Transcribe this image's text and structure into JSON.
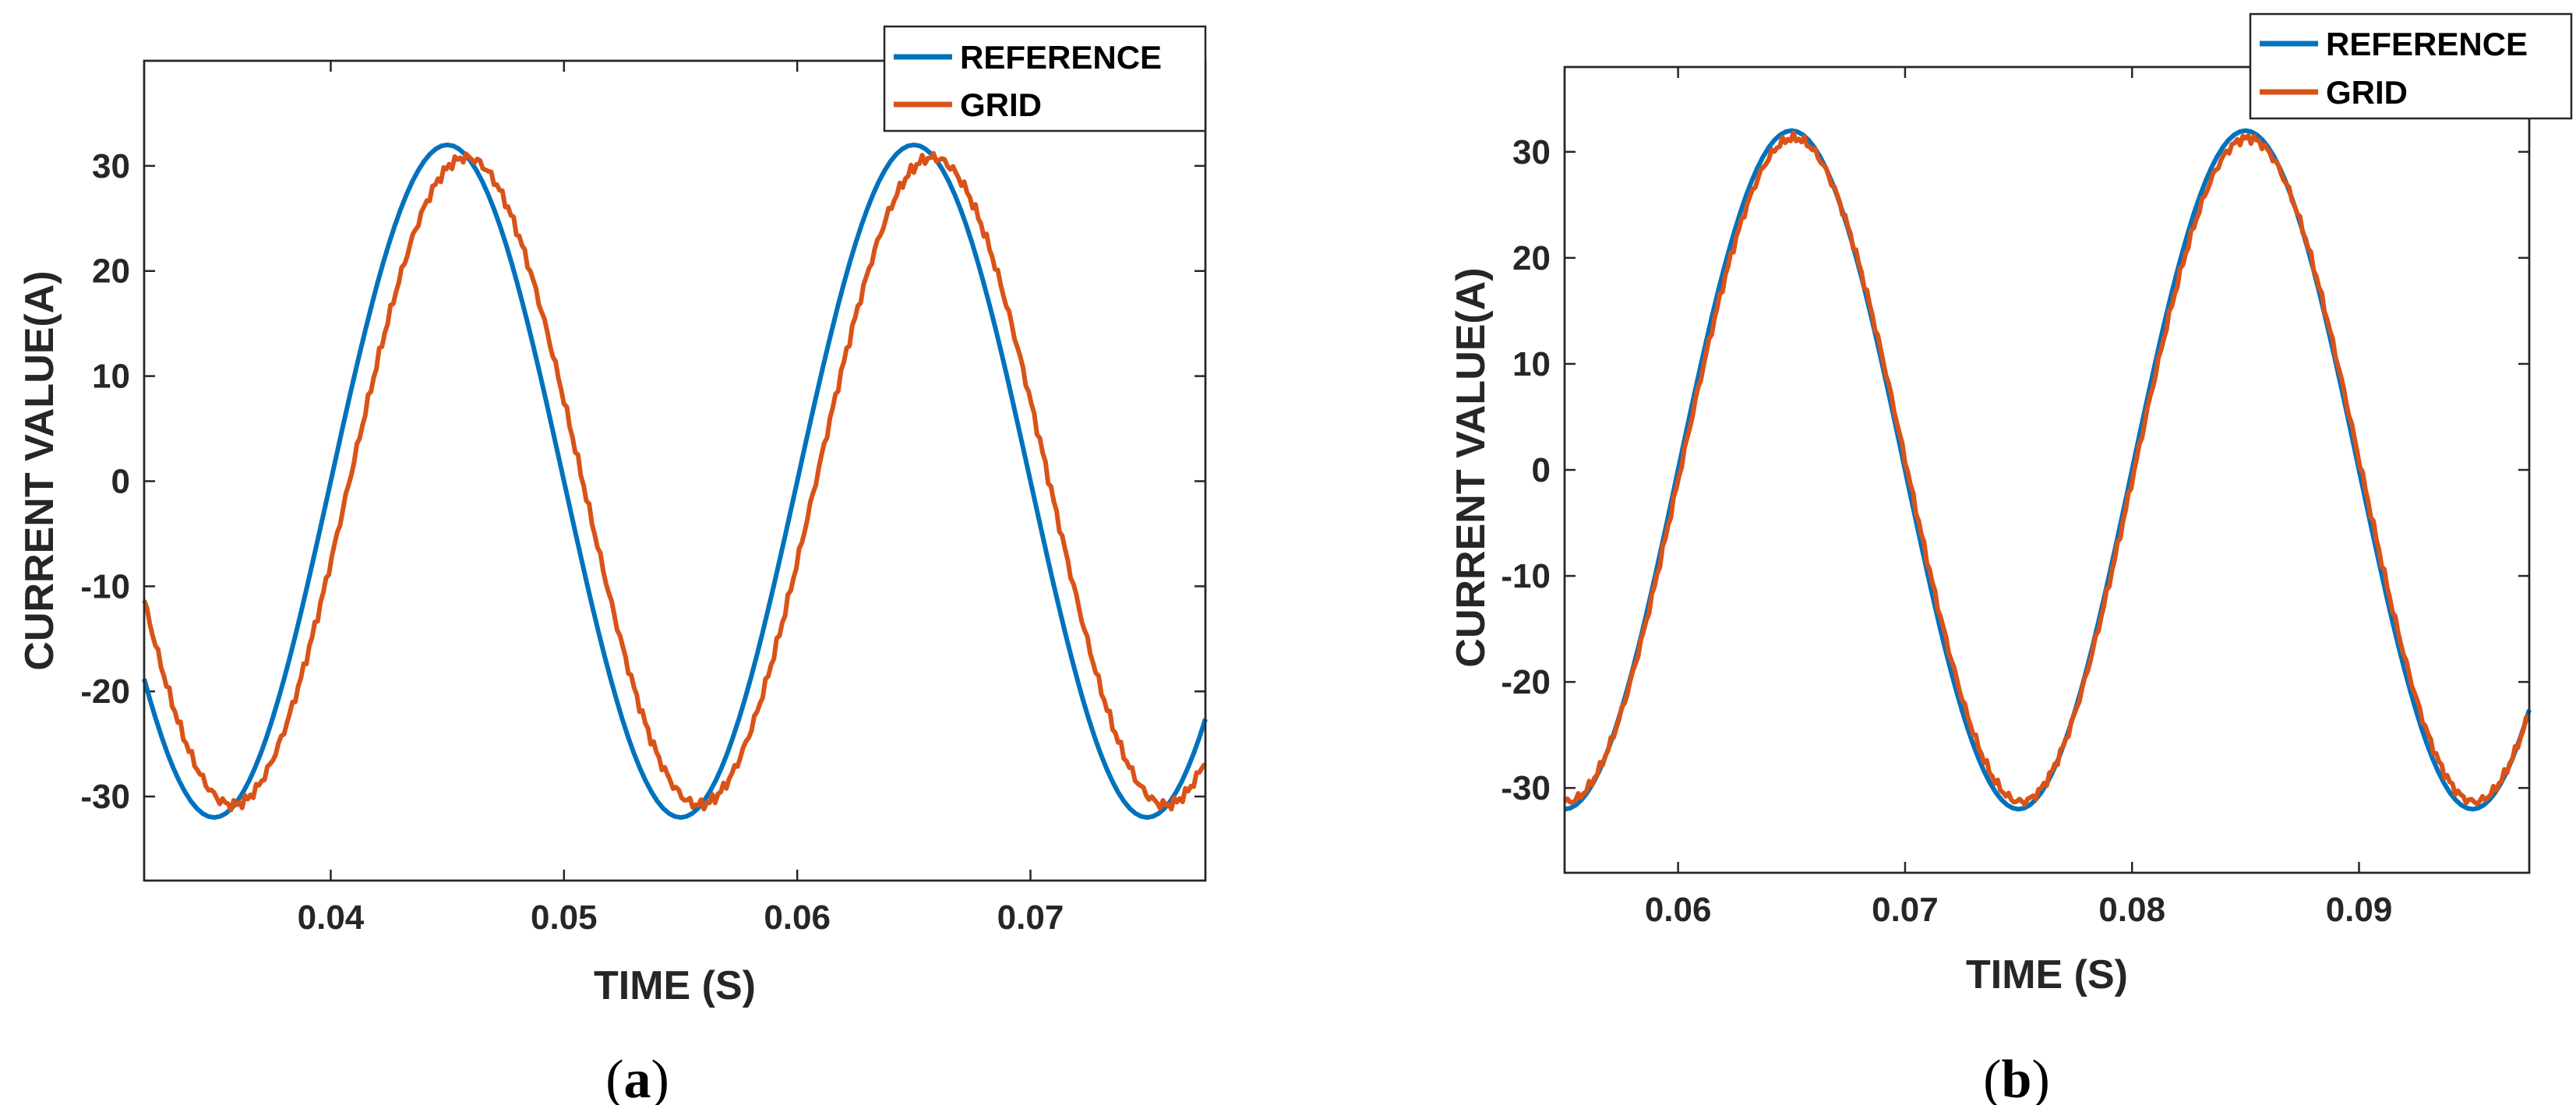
{
  "chart_data": [
    {
      "type": "line",
      "panel_label": "a",
      "xlabel": "TIME (S)",
      "ylabel": "CURRENT VALUE(A)",
      "xlim": [
        0.032,
        0.0775
      ],
      "ylim": [
        -38,
        40
      ],
      "xticks": [
        0.04,
        0.05,
        0.06,
        0.07
      ],
      "xtick_labels": [
        "0.04",
        "0.05",
        "0.06",
        "0.07"
      ],
      "yticks": [
        -30,
        -20,
        -10,
        0,
        10,
        20,
        30
      ],
      "ytick_labels": [
        "-30",
        "-20",
        "-10",
        "0",
        "10",
        "20",
        "30"
      ],
      "legend_position": "top-right",
      "series": [
        {
          "name": "REFERENCE",
          "color": "#0072BD",
          "model": "sine",
          "amplitude": 32,
          "frequency_hz": 50,
          "peak_time": 0.045,
          "sample_step": 0.00025
        },
        {
          "name": "GRID",
          "color": "#D95319",
          "model": "sine",
          "amplitude": 30.8,
          "frequency_hz": 50,
          "peak_time": 0.0458,
          "ripple": 0.6,
          "sample_step": 0.00012
        }
      ]
    },
    {
      "type": "line",
      "panel_label": "b",
      "xlabel": "TIME (S)",
      "ylabel": "CURRENT VALUE(A)",
      "xlim": [
        0.055,
        0.0975
      ],
      "ylim": [
        -38,
        38
      ],
      "xticks": [
        0.06,
        0.07,
        0.08,
        0.09
      ],
      "xtick_labels": [
        "0.06",
        "0.07",
        "0.08",
        "0.09"
      ],
      "yticks": [
        -30,
        -20,
        -10,
        0,
        10,
        20,
        30
      ],
      "ytick_labels": [
        "-30",
        "-20",
        "-10",
        "0",
        "10",
        "20",
        "30"
      ],
      "legend_position": "top-right",
      "series": [
        {
          "name": "REFERENCE",
          "color": "#0072BD",
          "model": "sine",
          "amplitude": 32,
          "frequency_hz": 50,
          "peak_time": 0.065,
          "sample_step": 0.00025
        },
        {
          "name": "GRID",
          "color": "#D95319",
          "model": "sine",
          "amplitude": 31.3,
          "frequency_hz": 50,
          "peak_time": 0.0651,
          "ripple": 0.5,
          "sample_step": 0.00012
        }
      ]
    }
  ]
}
